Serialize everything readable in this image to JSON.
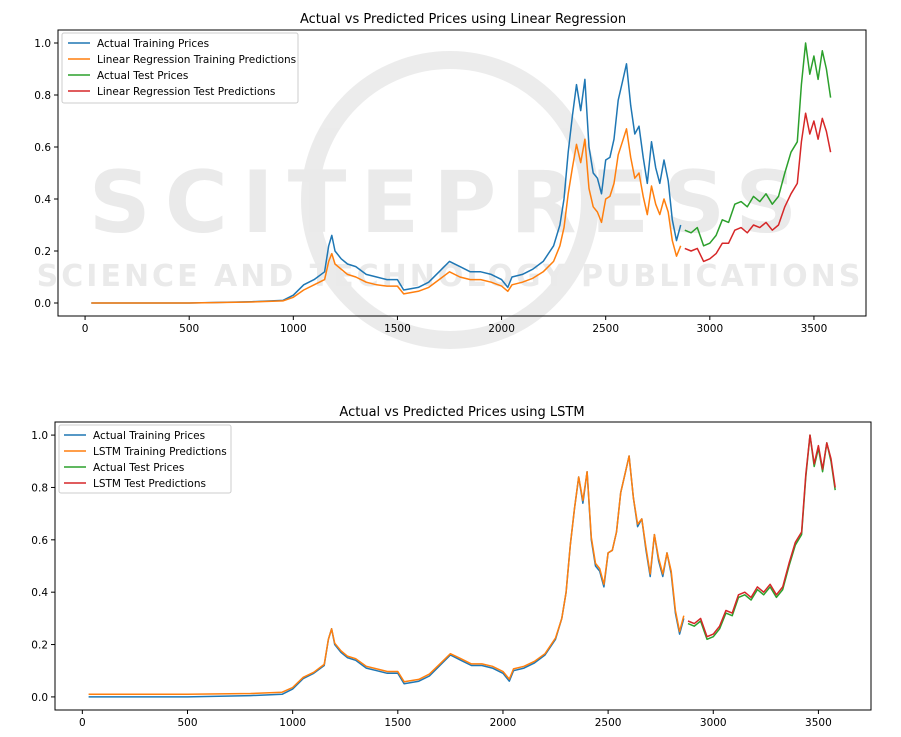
{
  "watermark": {
    "main": "SCITEPRESS",
    "sub": "SCIENCE AND TECHNOLOGY PUBLICATIONS"
  },
  "colors": {
    "blue": "#1f77b4",
    "orange": "#ff7f0e",
    "green": "#2ca02c",
    "red": "#d62728"
  },
  "chart_data": [
    {
      "type": "line",
      "title": "Actual vs Predicted Prices using Linear Regression",
      "xlabel": "",
      "ylabel": "",
      "xlim": [
        -130,
        3750
      ],
      "ylim": [
        -0.05,
        1.05
      ],
      "xticks": [
        0,
        500,
        1000,
        1500,
        2000,
        2500,
        3000,
        3500
      ],
      "yticks": [
        0.0,
        0.2,
        0.4,
        0.6,
        0.8,
        1.0
      ],
      "legend_position": "upper-left",
      "series": [
        {
          "name": "Actual Training Prices",
          "color": "#1f77b4",
          "x": [
            30,
            500,
            800,
            950,
            1000,
            1050,
            1100,
            1150,
            1170,
            1185,
            1200,
            1230,
            1260,
            1300,
            1350,
            1400,
            1450,
            1500,
            1530,
            1600,
            1650,
            1700,
            1750,
            1800,
            1850,
            1900,
            1950,
            2000,
            2030,
            2050,
            2100,
            2150,
            2200,
            2250,
            2280,
            2300,
            2320,
            2340,
            2360,
            2380,
            2400,
            2420,
            2440,
            2460,
            2480,
            2500,
            2520,
            2540,
            2560,
            2580,
            2600,
            2620,
            2640,
            2660,
            2680,
            2700,
            2720,
            2740,
            2760,
            2780,
            2800,
            2820,
            2840,
            2860
          ],
          "y": [
            0.0,
            0.0,
            0.005,
            0.01,
            0.03,
            0.07,
            0.09,
            0.12,
            0.22,
            0.26,
            0.2,
            0.17,
            0.15,
            0.14,
            0.11,
            0.1,
            0.09,
            0.09,
            0.05,
            0.06,
            0.08,
            0.12,
            0.16,
            0.14,
            0.12,
            0.12,
            0.11,
            0.09,
            0.06,
            0.1,
            0.11,
            0.13,
            0.16,
            0.22,
            0.3,
            0.4,
            0.58,
            0.72,
            0.84,
            0.74,
            0.86,
            0.6,
            0.5,
            0.48,
            0.42,
            0.55,
            0.56,
            0.63,
            0.78,
            0.85,
            0.92,
            0.76,
            0.65,
            0.68,
            0.56,
            0.46,
            0.62,
            0.52,
            0.46,
            0.55,
            0.47,
            0.32,
            0.24,
            0.3
          ]
        },
        {
          "name": "Linear Regression Training Predictions",
          "color": "#ff7f0e",
          "x": [
            30,
            500,
            800,
            950,
            1000,
            1050,
            1100,
            1150,
            1170,
            1185,
            1200,
            1230,
            1260,
            1300,
            1350,
            1400,
            1450,
            1500,
            1530,
            1600,
            1650,
            1700,
            1750,
            1800,
            1850,
            1900,
            1950,
            2000,
            2030,
            2050,
            2100,
            2150,
            2200,
            2250,
            2280,
            2300,
            2320,
            2340,
            2360,
            2380,
            2400,
            2420,
            2440,
            2460,
            2480,
            2500,
            2520,
            2540,
            2560,
            2580,
            2600,
            2620,
            2640,
            2660,
            2680,
            2700,
            2720,
            2740,
            2760,
            2780,
            2800,
            2820,
            2840,
            2860
          ],
          "y": [
            0.0,
            0.0,
            0.004,
            0.008,
            0.022,
            0.05,
            0.07,
            0.09,
            0.16,
            0.19,
            0.15,
            0.13,
            0.11,
            0.1,
            0.08,
            0.07,
            0.065,
            0.065,
            0.035,
            0.045,
            0.06,
            0.09,
            0.12,
            0.1,
            0.09,
            0.09,
            0.08,
            0.065,
            0.045,
            0.07,
            0.08,
            0.095,
            0.12,
            0.16,
            0.22,
            0.29,
            0.42,
            0.52,
            0.61,
            0.54,
            0.63,
            0.44,
            0.37,
            0.35,
            0.31,
            0.4,
            0.41,
            0.46,
            0.57,
            0.62,
            0.67,
            0.56,
            0.48,
            0.5,
            0.41,
            0.34,
            0.45,
            0.38,
            0.34,
            0.4,
            0.35,
            0.24,
            0.18,
            0.22
          ]
        },
        {
          "name": "Actual Test Prices",
          "color": "#2ca02c",
          "x": [
            2880,
            2910,
            2940,
            2970,
            3000,
            3030,
            3060,
            3090,
            3120,
            3150,
            3180,
            3210,
            3240,
            3270,
            3300,
            3330,
            3360,
            3390,
            3420,
            3440,
            3460,
            3480,
            3500,
            3520,
            3540,
            3560,
            3580
          ],
          "y": [
            0.28,
            0.27,
            0.29,
            0.22,
            0.23,
            0.26,
            0.32,
            0.31,
            0.38,
            0.39,
            0.37,
            0.41,
            0.39,
            0.42,
            0.38,
            0.41,
            0.5,
            0.58,
            0.62,
            0.84,
            1.0,
            0.88,
            0.95,
            0.86,
            0.97,
            0.9,
            0.79
          ]
        },
        {
          "name": "Linear Regression Test Predictions",
          "color": "#d62728",
          "x": [
            2880,
            2910,
            2940,
            2970,
            3000,
            3030,
            3060,
            3090,
            3120,
            3150,
            3180,
            3210,
            3240,
            3270,
            3300,
            3330,
            3360,
            3390,
            3420,
            3440,
            3460,
            3480,
            3500,
            3520,
            3540,
            3560,
            3580
          ],
          "y": [
            0.21,
            0.2,
            0.21,
            0.16,
            0.17,
            0.19,
            0.23,
            0.23,
            0.28,
            0.29,
            0.27,
            0.3,
            0.29,
            0.31,
            0.28,
            0.3,
            0.37,
            0.42,
            0.46,
            0.62,
            0.73,
            0.65,
            0.7,
            0.63,
            0.71,
            0.66,
            0.58
          ]
        }
      ]
    },
    {
      "type": "line",
      "title": "Actual vs Predicted Prices using LSTM",
      "xlabel": "",
      "ylabel": "",
      "xlim": [
        -130,
        3750
      ],
      "ylim": [
        -0.05,
        1.05
      ],
      "xticks": [
        0,
        500,
        1000,
        1500,
        2000,
        2500,
        3000,
        3500
      ],
      "yticks": [
        0.0,
        0.2,
        0.4,
        0.6,
        0.8,
        1.0
      ],
      "legend_position": "upper-left",
      "series": [
        {
          "name": "Actual Training Prices",
          "color": "#1f77b4",
          "x": [
            30,
            500,
            800,
            950,
            1000,
            1050,
            1100,
            1150,
            1170,
            1185,
            1200,
            1230,
            1260,
            1300,
            1350,
            1400,
            1450,
            1500,
            1530,
            1600,
            1650,
            1700,
            1750,
            1800,
            1850,
            1900,
            1950,
            2000,
            2030,
            2050,
            2100,
            2150,
            2200,
            2250,
            2280,
            2300,
            2320,
            2340,
            2360,
            2380,
            2400,
            2420,
            2440,
            2460,
            2480,
            2500,
            2520,
            2540,
            2560,
            2580,
            2600,
            2620,
            2640,
            2660,
            2680,
            2700,
            2720,
            2740,
            2760,
            2780,
            2800,
            2820,
            2840,
            2860
          ],
          "y": [
            0.0,
            0.0,
            0.005,
            0.01,
            0.03,
            0.07,
            0.09,
            0.12,
            0.22,
            0.26,
            0.2,
            0.17,
            0.15,
            0.14,
            0.11,
            0.1,
            0.09,
            0.09,
            0.05,
            0.06,
            0.08,
            0.12,
            0.16,
            0.14,
            0.12,
            0.12,
            0.11,
            0.09,
            0.06,
            0.1,
            0.11,
            0.13,
            0.16,
            0.22,
            0.3,
            0.4,
            0.58,
            0.72,
            0.84,
            0.74,
            0.86,
            0.6,
            0.5,
            0.48,
            0.42,
            0.55,
            0.56,
            0.63,
            0.78,
            0.85,
            0.92,
            0.76,
            0.65,
            0.68,
            0.56,
            0.46,
            0.62,
            0.52,
            0.46,
            0.55,
            0.47,
            0.32,
            0.24,
            0.3
          ]
        },
        {
          "name": "LSTM Training Predictions",
          "color": "#ff7f0e",
          "x": [
            30,
            500,
            800,
            950,
            1000,
            1050,
            1100,
            1150,
            1170,
            1185,
            1200,
            1230,
            1260,
            1300,
            1350,
            1400,
            1450,
            1500,
            1530,
            1600,
            1650,
            1700,
            1750,
            1800,
            1850,
            1900,
            1950,
            2000,
            2030,
            2050,
            2100,
            2150,
            2200,
            2250,
            2280,
            2300,
            2320,
            2340,
            2360,
            2380,
            2400,
            2420,
            2440,
            2460,
            2480,
            2500,
            2520,
            2540,
            2560,
            2580,
            2600,
            2620,
            2640,
            2660,
            2680,
            2700,
            2720,
            2740,
            2760,
            2780,
            2800,
            2820,
            2840,
            2860
          ],
          "y": [
            0.01,
            0.01,
            0.013,
            0.018,
            0.036,
            0.075,
            0.094,
            0.124,
            0.22,
            0.26,
            0.205,
            0.176,
            0.156,
            0.146,
            0.117,
            0.107,
            0.097,
            0.097,
            0.058,
            0.067,
            0.087,
            0.126,
            0.165,
            0.146,
            0.126,
            0.126,
            0.117,
            0.097,
            0.068,
            0.107,
            0.117,
            0.136,
            0.165,
            0.225,
            0.3,
            0.4,
            0.58,
            0.72,
            0.84,
            0.75,
            0.86,
            0.61,
            0.51,
            0.49,
            0.43,
            0.55,
            0.56,
            0.63,
            0.78,
            0.85,
            0.92,
            0.76,
            0.66,
            0.68,
            0.57,
            0.47,
            0.62,
            0.53,
            0.47,
            0.55,
            0.48,
            0.33,
            0.25,
            0.31
          ]
        },
        {
          "name": "Actual Test Prices",
          "color": "#2ca02c",
          "x": [
            2880,
            2910,
            2940,
            2970,
            3000,
            3030,
            3060,
            3090,
            3120,
            3150,
            3180,
            3210,
            3240,
            3270,
            3300,
            3330,
            3360,
            3390,
            3420,
            3440,
            3460,
            3480,
            3500,
            3520,
            3540,
            3560,
            3580
          ],
          "y": [
            0.28,
            0.27,
            0.29,
            0.22,
            0.23,
            0.26,
            0.32,
            0.31,
            0.38,
            0.39,
            0.37,
            0.41,
            0.39,
            0.42,
            0.38,
            0.41,
            0.5,
            0.58,
            0.62,
            0.84,
            1.0,
            0.88,
            0.95,
            0.86,
            0.97,
            0.9,
            0.79
          ]
        },
        {
          "name": "LSTM Test Predictions",
          "color": "#d62728",
          "x": [
            2880,
            2910,
            2940,
            2970,
            3000,
            3030,
            3060,
            3090,
            3120,
            3150,
            3180,
            3210,
            3240,
            3270,
            3300,
            3330,
            3360,
            3390,
            3420,
            3440,
            3460,
            3480,
            3500,
            3520,
            3540,
            3560,
            3580
          ],
          "y": [
            0.29,
            0.28,
            0.3,
            0.23,
            0.24,
            0.27,
            0.33,
            0.32,
            0.39,
            0.4,
            0.38,
            0.42,
            0.4,
            0.43,
            0.39,
            0.42,
            0.51,
            0.59,
            0.63,
            0.85,
            1.0,
            0.89,
            0.96,
            0.87,
            0.97,
            0.91,
            0.8
          ]
        }
      ]
    }
  ]
}
